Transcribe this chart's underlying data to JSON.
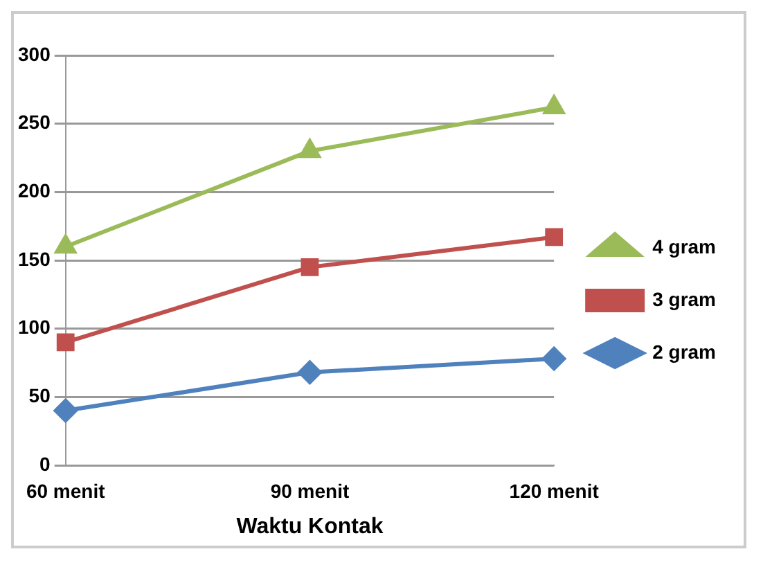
{
  "chart_data": {
    "type": "line",
    "xlabel": "Waktu Kontak",
    "categories": [
      "60 menit",
      "90 menit",
      "120 menit"
    ],
    "series": [
      {
        "name": "2 gram",
        "color": "#4f81bd",
        "marker": "diamond",
        "values": [
          40,
          68,
          78
        ]
      },
      {
        "name": "3 gram",
        "color": "#c0504d",
        "marker": "square",
        "values": [
          90,
          145,
          167
        ]
      },
      {
        "name": "4 gram",
        "color": "#9bbb59",
        "marker": "triangle",
        "values": [
          160,
          230,
          262
        ]
      }
    ],
    "ylim": [
      0,
      300
    ],
    "yticks": [
      0,
      50,
      100,
      150,
      200,
      250,
      300
    ],
    "grid": "y",
    "legend": "right"
  }
}
